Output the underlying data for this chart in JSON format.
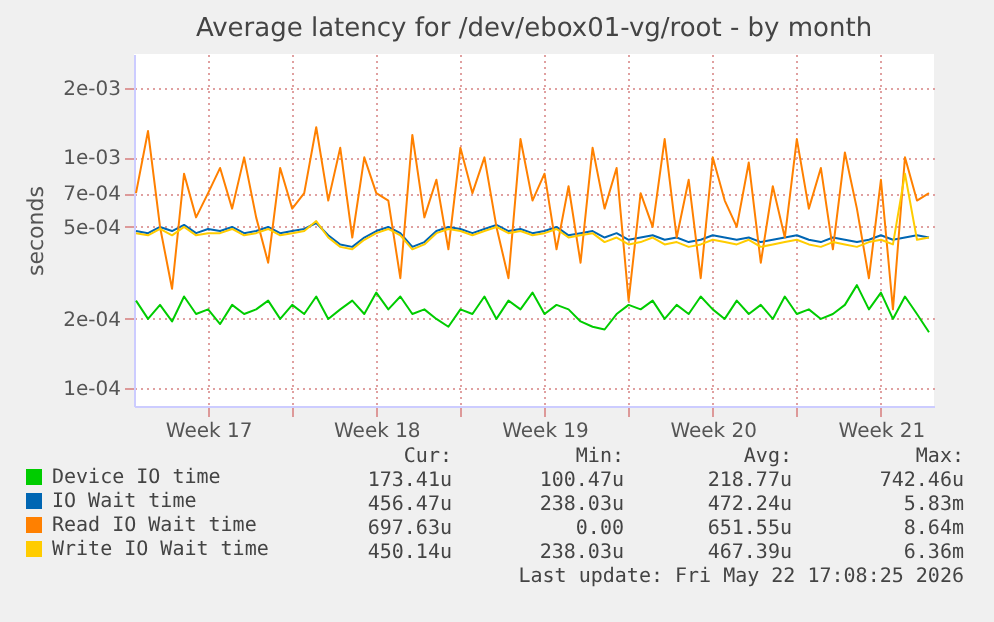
{
  "chart_data": {
    "type": "line",
    "title": "Average latency for /dev/ebox01-vg/root - by month",
    "ylabel": "seconds",
    "log": "y",
    "grid": true,
    "legend": "bottom left",
    "line_style": "solid",
    "x": [
      "2026-04-20T12:00",
      "2026-04-21T00:00",
      "2026-04-21T12:00",
      "2026-04-22T00:00",
      "2026-04-22T12:00",
      "2026-04-23T00:00",
      "2026-04-23T12:00",
      "2026-04-24T00:00",
      "2026-04-24T12:00",
      "2026-04-25T00:00",
      "2026-04-25T12:00",
      "2026-04-26T00:00",
      "2026-04-26T12:00",
      "2026-04-27T00:00",
      "2026-04-27T12:00",
      "2026-04-28T00:00",
      "2026-04-28T12:00",
      "2026-04-29T00:00",
      "2026-04-29T12:00",
      "2026-04-30T00:00",
      "2026-04-30T12:00",
      "2026-05-01T00:00",
      "2026-05-01T12:00",
      "2026-05-02T00:00",
      "2026-05-02T12:00",
      "2026-05-03T00:00",
      "2026-05-03T12:00",
      "2026-05-04T00:00",
      "2026-05-04T12:00",
      "2026-05-05T00:00",
      "2026-05-05T12:00",
      "2026-05-06T00:00",
      "2026-05-06T12:00",
      "2026-05-07T00:00",
      "2026-05-07T12:00",
      "2026-05-08T00:00",
      "2026-05-08T12:00",
      "2026-05-09T00:00",
      "2026-05-09T12:00",
      "2026-05-10T00:00",
      "2026-05-10T12:00",
      "2026-05-11T00:00",
      "2026-05-11T12:00",
      "2026-05-12T00:00",
      "2026-05-12T12:00",
      "2026-05-13T00:00",
      "2026-05-13T12:00",
      "2026-05-14T00:00",
      "2026-05-14T12:00",
      "2026-05-15T00:00",
      "2026-05-15T12:00",
      "2026-05-16T00:00",
      "2026-05-16T12:00",
      "2026-05-17T00:00",
      "2026-05-17T12:00",
      "2026-05-18T00:00",
      "2026-05-18T12:00",
      "2026-05-19T00:00",
      "2026-05-19T12:00",
      "2026-05-20T00:00",
      "2026-05-20T12:00",
      "2026-05-21T00:00",
      "2026-05-21T12:00",
      "2026-05-22T00:00",
      "2026-05-22T12:00",
      "2026-05-23T00:00",
      "2026-05-23T12:00"
    ],
    "xlim": [
      "2026-04-20T10:00",
      "2026-05-23T17:00"
    ],
    "xticks": [
      {
        "value": "2026-04-23T12:00",
        "label": "Week 17"
      },
      {
        "value": "2026-04-27T00:00",
        "label": null
      },
      {
        "value": "2026-04-30T12:00",
        "label": "Week 18"
      },
      {
        "value": "2026-05-04T00:00",
        "label": null
      },
      {
        "value": "2026-05-07T12:00",
        "label": "Week 19"
      },
      {
        "value": "2026-05-11T00:00",
        "label": null
      },
      {
        "value": "2026-05-14T12:00",
        "label": "Week 20"
      },
      {
        "value": "2026-05-18T00:00",
        "label": null
      },
      {
        "value": "2026-05-21T12:00",
        "label": "Week 21"
      }
    ],
    "ylim": [
      8.4e-05,
      0.0028
    ],
    "yticks": [
      {
        "value": 0.0001,
        "label": "1e-04"
      },
      {
        "value": 0.0002,
        "label": "2e-04"
      },
      {
        "value": 0.0005,
        "label": "5e-04"
      },
      {
        "value": 0.0007,
        "label": "7e-04"
      },
      {
        "value": 0.001,
        "label": "1e-03"
      },
      {
        "value": 0.002,
        "label": "2e-03"
      }
    ],
    "series": [
      {
        "name": "Device IO time",
        "color": "#00cc00",
        "values": [
          0.00024,
          0.0002,
          0.00023,
          0.000195,
          0.00025,
          0.00021,
          0.00022,
          0.00019,
          0.00023,
          0.00021,
          0.00022,
          0.00024,
          0.0002,
          0.00023,
          0.00021,
          0.00025,
          0.0002,
          0.00022,
          0.00024,
          0.00021,
          0.00026,
          0.00022,
          0.00025,
          0.00021,
          0.00022,
          0.0002,
          0.000185,
          0.00022,
          0.00021,
          0.00025,
          0.0002,
          0.00024,
          0.00022,
          0.00026,
          0.00021,
          0.00023,
          0.00022,
          0.000195,
          0.000185,
          0.00018,
          0.00021,
          0.00023,
          0.00022,
          0.00024,
          0.0002,
          0.00023,
          0.00021,
          0.00025,
          0.00022,
          0.0002,
          0.00024,
          0.00021,
          0.00023,
          0.0002,
          0.00025,
          0.00021,
          0.00022,
          0.0002,
          0.00021,
          0.00023,
          0.00028,
          0.00022,
          0.00026,
          0.0002,
          0.00025,
          0.00021,
          0.000175
        ]
      },
      {
        "name": "IO Wait time",
        "color": "#0066b3",
        "values": [
          0.00048,
          0.00047,
          0.0005,
          0.00048,
          0.00051,
          0.00047,
          0.00049,
          0.00048,
          0.0005,
          0.00047,
          0.00048,
          0.0005,
          0.00047,
          0.00048,
          0.00049,
          0.00052,
          0.00046,
          0.00042,
          0.00041,
          0.00045,
          0.00048,
          0.0005,
          0.00047,
          0.00041,
          0.00043,
          0.00048,
          0.0005,
          0.00049,
          0.00047,
          0.00049,
          0.00051,
          0.00048,
          0.00049,
          0.00047,
          0.00048,
          0.0005,
          0.00046,
          0.00047,
          0.00048,
          0.00045,
          0.00047,
          0.00044,
          0.00045,
          0.00046,
          0.00044,
          0.00045,
          0.00043,
          0.00044,
          0.00046,
          0.00045,
          0.00044,
          0.00045,
          0.00043,
          0.00044,
          0.00045,
          0.00046,
          0.00044,
          0.00043,
          0.00045,
          0.00044,
          0.00043,
          0.00044,
          0.00046,
          0.00044,
          0.00045,
          0.00046,
          0.00045
        ]
      },
      {
        "name": "Read IO Wait time",
        "color": "#ff8000",
        "values": [
          0.0007,
          0.0013,
          0.0005,
          0.00027,
          0.00085,
          0.00055,
          0.0007,
          0.0009,
          0.0006,
          0.001,
          0.00055,
          0.00035,
          0.0009,
          0.0006,
          0.0007,
          0.00135,
          0.00065,
          0.0011,
          0.00045,
          0.001,
          0.0007,
          0.00065,
          0.0003,
          0.00125,
          0.00055,
          0.0008,
          0.0004,
          0.0011,
          0.0007,
          0.001,
          0.0005,
          0.0003,
          0.0012,
          0.00065,
          0.00085,
          0.0004,
          0.00075,
          0.00035,
          0.0011,
          0.0006,
          0.0009,
          0.00024,
          0.0007,
          0.0005,
          0.0012,
          0.00045,
          0.0008,
          0.0003,
          0.001,
          0.00065,
          0.0005,
          0.00095,
          0.00035,
          0.00075,
          0.00045,
          0.0012,
          0.0006,
          0.0009,
          0.0004,
          0.00105,
          0.0006,
          0.0003,
          0.0008,
          0.00022,
          0.001,
          0.00065,
          0.0007
        ]
      },
      {
        "name": "Write IO Wait time",
        "color": "#ffcc00",
        "values": [
          0.00047,
          0.00046,
          0.00049,
          0.00046,
          0.0005,
          0.00046,
          0.00047,
          0.00047,
          0.00049,
          0.00046,
          0.00047,
          0.00049,
          0.00046,
          0.00047,
          0.00048,
          0.00053,
          0.00045,
          0.00041,
          0.0004,
          0.00044,
          0.00047,
          0.00049,
          0.00046,
          0.0004,
          0.00042,
          0.00047,
          0.00049,
          0.00048,
          0.00046,
          0.00048,
          0.0005,
          0.00047,
          0.00048,
          0.00046,
          0.00047,
          0.00049,
          0.00045,
          0.00046,
          0.00047,
          0.00043,
          0.00045,
          0.00042,
          0.00043,
          0.00045,
          0.00042,
          0.00043,
          0.00041,
          0.00042,
          0.00044,
          0.00043,
          0.00042,
          0.00044,
          0.00041,
          0.00042,
          0.00043,
          0.00044,
          0.00042,
          0.00041,
          0.00043,
          0.00042,
          0.00041,
          0.00043,
          0.00044,
          0.00042,
          0.00085,
          0.00044,
          0.00045
        ]
      }
    ],
    "annotations": [
      "Cur:",
      "Min:",
      "Avg:",
      "Max:",
      "173.41u",
      "100.47u",
      "218.77u",
      "742.46u",
      "456.47u",
      "238.03u",
      "472.24u",
      "5.83m",
      "697.63u",
      "0.00",
      "651.55u",
      "8.64m",
      "450.14u",
      "238.03u",
      "467.39u",
      "6.36m",
      "Last update: Fri May 22 17:08:25 2026"
    ]
  }
}
